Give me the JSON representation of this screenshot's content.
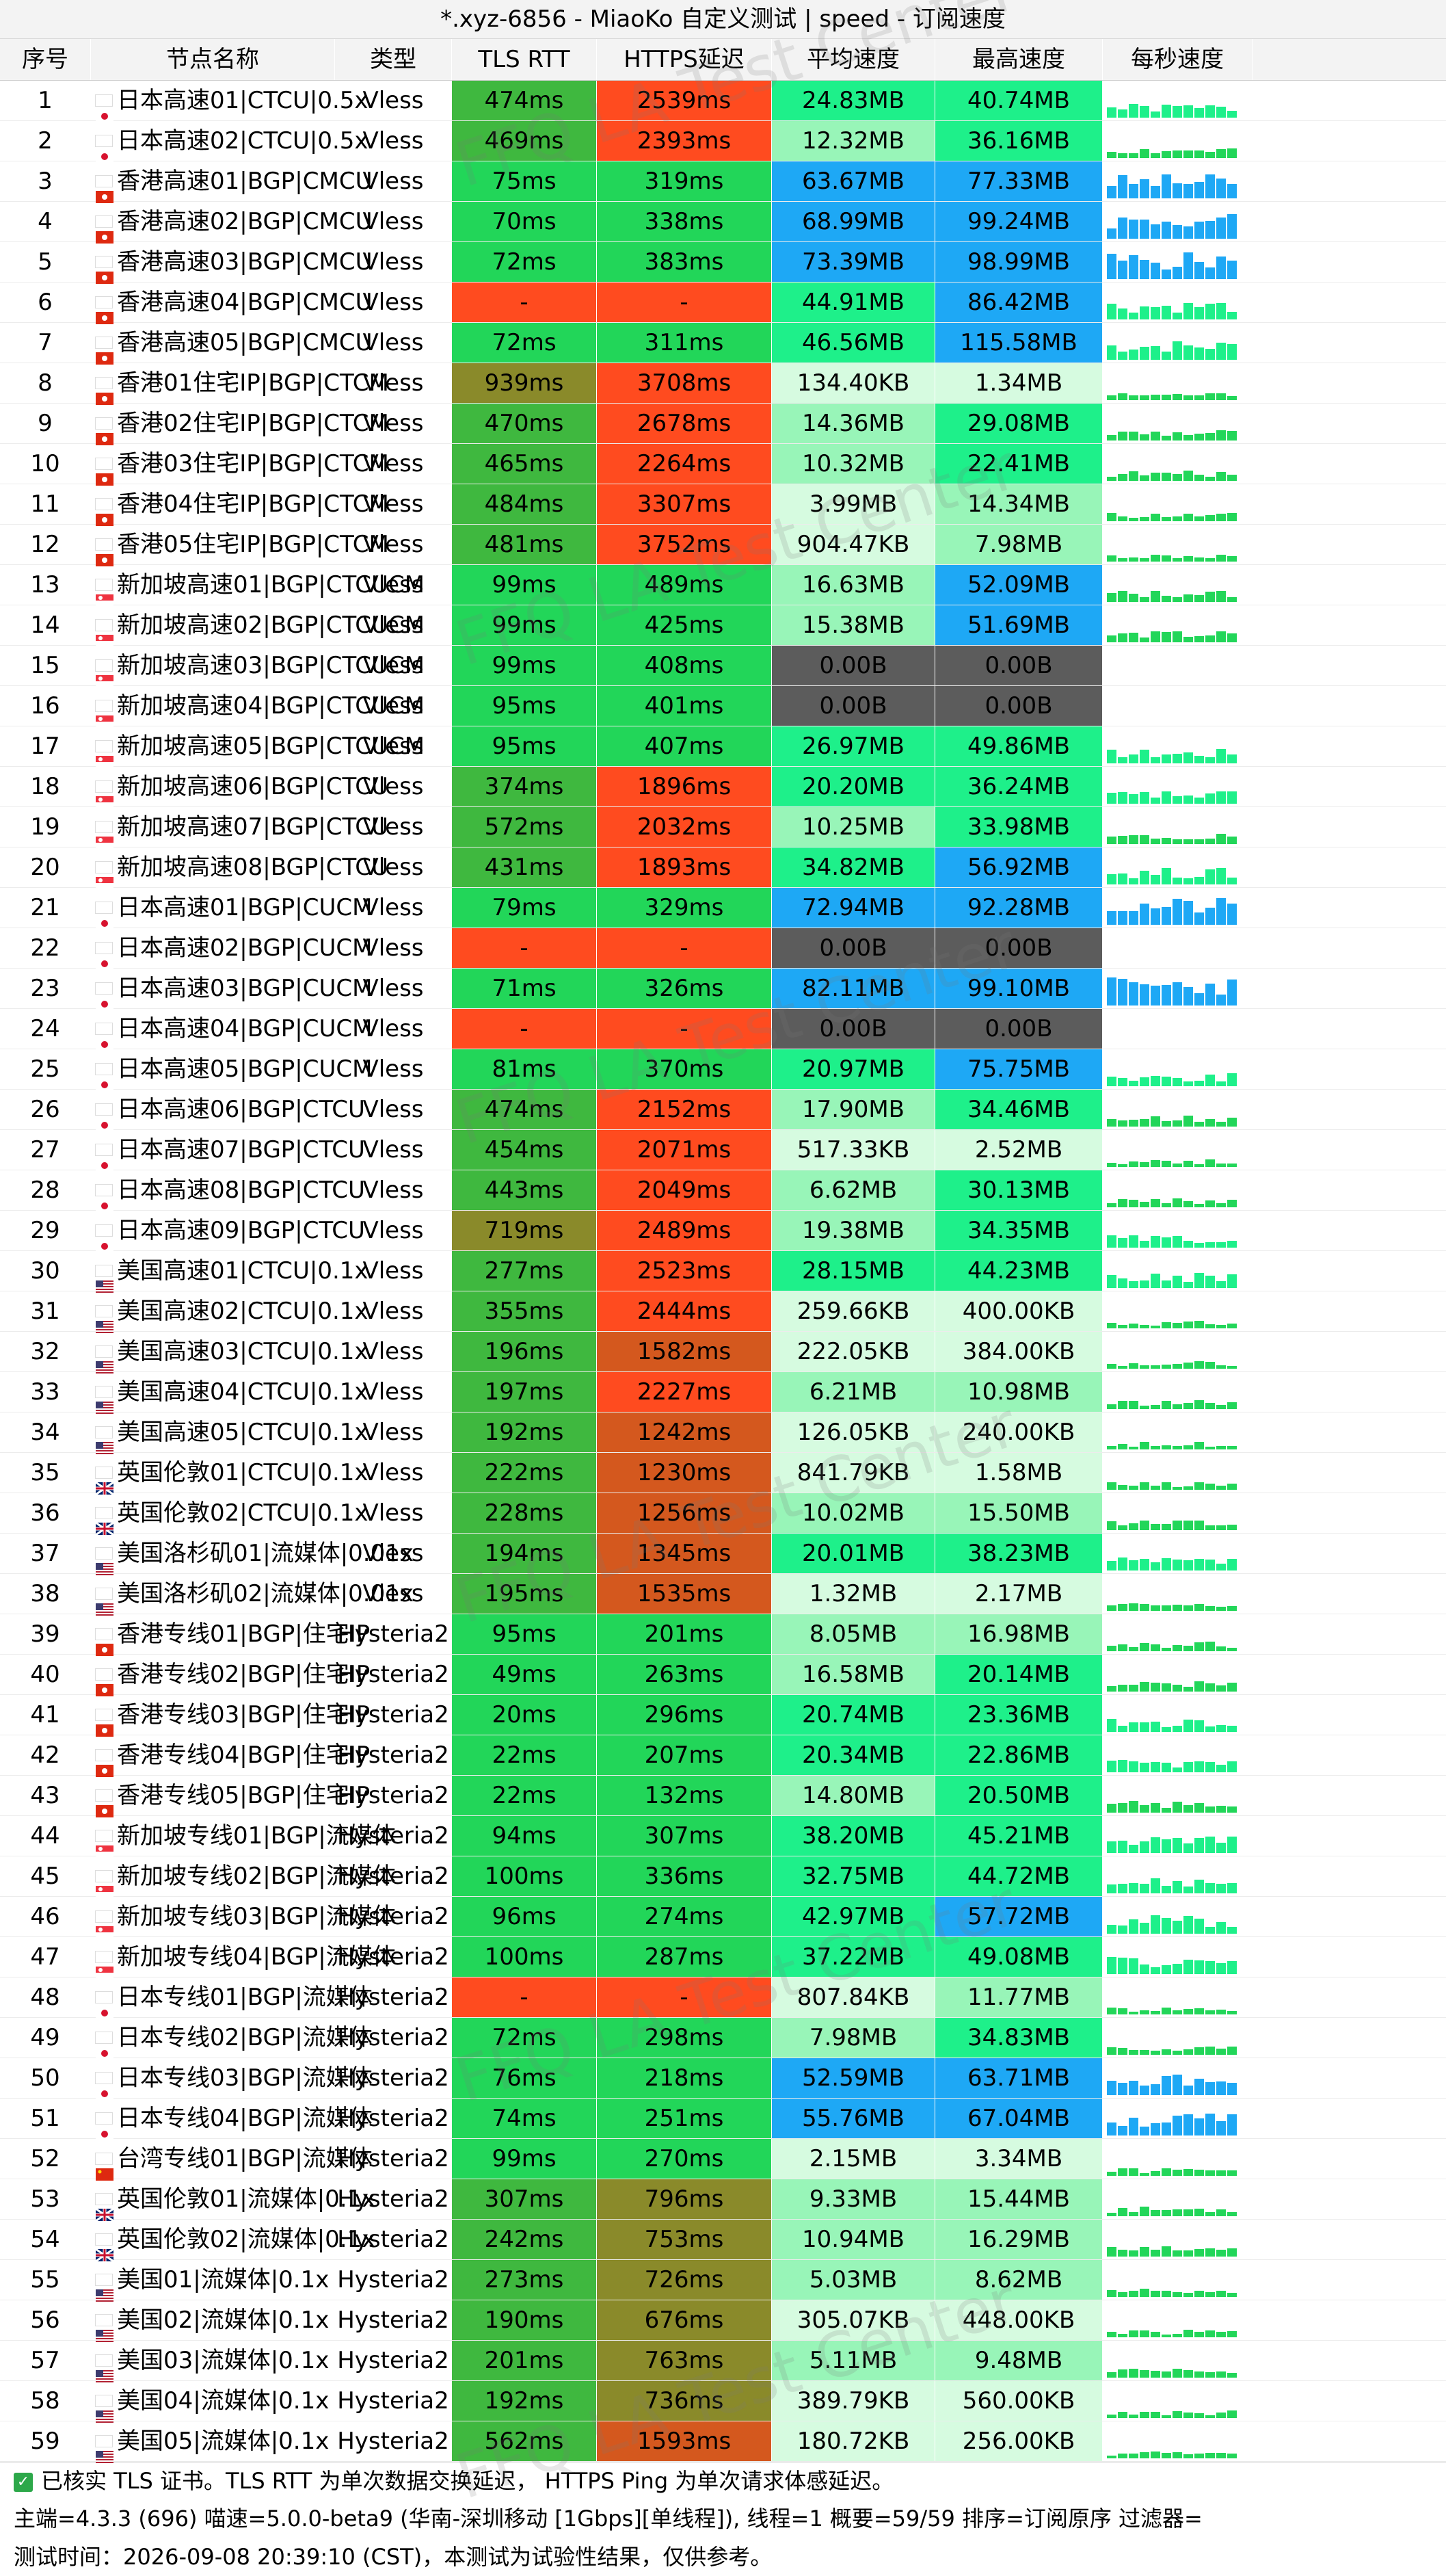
{
  "title": "*.xyz-6856 - MiaoKo 自定义测试 | speed - 订阅速度",
  "watermark": "FFQ LA Test Center",
  "headers": [
    "序号",
    "节点名称",
    "类型",
    "TLS RTT",
    "HTTPS延迟",
    "平均速度",
    "最高速度",
    "每秒速度"
  ],
  "rows": [
    {
      "no": "1",
      "flag": "jp",
      "name": "日本高速01|CTCU|0.5x",
      "type": "Vless",
      "tls": "474ms",
      "https": "2539ms",
      "avg": "24.83MB",
      "max": "40.74MB"
    },
    {
      "no": "2",
      "flag": "jp",
      "name": "日本高速02|CTCU|0.5x",
      "type": "Vless",
      "tls": "469ms",
      "https": "2393ms",
      "avg": "12.32MB",
      "max": "36.16MB"
    },
    {
      "no": "3",
      "flag": "hk",
      "name": "香港高速01|BGP|CMCU",
      "type": "Vless",
      "tls": "75ms",
      "https": "319ms",
      "avg": "63.67MB",
      "max": "77.33MB"
    },
    {
      "no": "4",
      "flag": "hk",
      "name": "香港高速02|BGP|CMCU",
      "type": "Vless",
      "tls": "70ms",
      "https": "338ms",
      "avg": "68.99MB",
      "max": "99.24MB"
    },
    {
      "no": "5",
      "flag": "hk",
      "name": "香港高速03|BGP|CMCU",
      "type": "Vless",
      "tls": "72ms",
      "https": "383ms",
      "avg": "73.39MB",
      "max": "98.99MB"
    },
    {
      "no": "6",
      "flag": "hk",
      "name": "香港高速04|BGP|CMCU",
      "type": "Vless",
      "tls": "-",
      "https": "-",
      "avg": "44.91MB",
      "max": "86.42MB"
    },
    {
      "no": "7",
      "flag": "hk",
      "name": "香港高速05|BGP|CMCU",
      "type": "Vless",
      "tls": "72ms",
      "https": "311ms",
      "avg": "46.56MB",
      "max": "115.58MB"
    },
    {
      "no": "8",
      "flag": "hk",
      "name": "香港01住宅IP|BGP|CTCM",
      "type": "Vless",
      "tls": "939ms",
      "https": "3708ms",
      "avg": "134.40KB",
      "max": "1.34MB"
    },
    {
      "no": "9",
      "flag": "hk",
      "name": "香港02住宅IP|BGP|CTCM",
      "type": "Vless",
      "tls": "470ms",
      "https": "2678ms",
      "avg": "14.36MB",
      "max": "29.08MB"
    },
    {
      "no": "10",
      "flag": "hk",
      "name": "香港03住宅IP|BGP|CTCM",
      "type": "Vless",
      "tls": "465ms",
      "https": "2264ms",
      "avg": "10.32MB",
      "max": "22.41MB"
    },
    {
      "no": "11",
      "flag": "hk",
      "name": "香港04住宅IP|BGP|CTCM",
      "type": "Vless",
      "tls": "484ms",
      "https": "3307ms",
      "avg": "3.99MB",
      "max": "14.34MB"
    },
    {
      "no": "12",
      "flag": "hk",
      "name": "香港05住宅IP|BGP|CTCM",
      "type": "Vless",
      "tls": "481ms",
      "https": "3752ms",
      "avg": "904.47KB",
      "max": "7.98MB"
    },
    {
      "no": "13",
      "flag": "sg",
      "name": "新加坡高速01|BGP|CTCUCM",
      "type": "Vless",
      "tls": "99ms",
      "https": "489ms",
      "avg": "16.63MB",
      "max": "52.09MB"
    },
    {
      "no": "14",
      "flag": "sg",
      "name": "新加坡高速02|BGP|CTCUCM",
      "type": "Vless",
      "tls": "99ms",
      "https": "425ms",
      "avg": "15.38MB",
      "max": "51.69MB"
    },
    {
      "no": "15",
      "flag": "sg",
      "name": "新加坡高速03|BGP|CTCUCM",
      "type": "Vless",
      "tls": "99ms",
      "https": "408ms",
      "avg": "0.00B",
      "max": "0.00B"
    },
    {
      "no": "16",
      "flag": "sg",
      "name": "新加坡高速04|BGP|CTCUCM",
      "type": "Vless",
      "tls": "95ms",
      "https": "401ms",
      "avg": "0.00B",
      "max": "0.00B"
    },
    {
      "no": "17",
      "flag": "sg",
      "name": "新加坡高速05|BGP|CTCUCM",
      "type": "Vless",
      "tls": "95ms",
      "https": "407ms",
      "avg": "26.97MB",
      "max": "49.86MB"
    },
    {
      "no": "18",
      "flag": "sg",
      "name": "新加坡高速06|BGP|CTCU",
      "type": "Vless",
      "tls": "374ms",
      "https": "1896ms",
      "avg": "20.20MB",
      "max": "36.24MB"
    },
    {
      "no": "19",
      "flag": "sg",
      "name": "新加坡高速07|BGP|CTCU",
      "type": "Vless",
      "tls": "572ms",
      "https": "2032ms",
      "avg": "10.25MB",
      "max": "33.98MB"
    },
    {
      "no": "20",
      "flag": "sg",
      "name": "新加坡高速08|BGP|CTCU",
      "type": "Vless",
      "tls": "431ms",
      "https": "1893ms",
      "avg": "34.82MB",
      "max": "56.92MB"
    },
    {
      "no": "21",
      "flag": "jp",
      "name": "日本高速01|BGP|CUCM",
      "type": "Vless",
      "tls": "79ms",
      "https": "329ms",
      "avg": "72.94MB",
      "max": "92.28MB"
    },
    {
      "no": "22",
      "flag": "jp",
      "name": "日本高速02|BGP|CUCM",
      "type": "Vless",
      "tls": "-",
      "https": "-",
      "avg": "0.00B",
      "max": "0.00B"
    },
    {
      "no": "23",
      "flag": "jp",
      "name": "日本高速03|BGP|CUCM",
      "type": "Vless",
      "tls": "71ms",
      "https": "326ms",
      "avg": "82.11MB",
      "max": "99.10MB"
    },
    {
      "no": "24",
      "flag": "jp",
      "name": "日本高速04|BGP|CUCM",
      "type": "Vless",
      "tls": "-",
      "https": "-",
      "avg": "0.00B",
      "max": "0.00B"
    },
    {
      "no": "25",
      "flag": "jp",
      "name": "日本高速05|BGP|CUCM",
      "type": "Vless",
      "tls": "81ms",
      "https": "370ms",
      "avg": "20.97MB",
      "max": "75.75MB"
    },
    {
      "no": "26",
      "flag": "jp",
      "name": "日本高速06|BGP|CTCU",
      "type": "Vless",
      "tls": "474ms",
      "https": "2152ms",
      "avg": "17.90MB",
      "max": "34.46MB"
    },
    {
      "no": "27",
      "flag": "jp",
      "name": "日本高速07|BGP|CTCU",
      "type": "Vless",
      "tls": "454ms",
      "https": "2071ms",
      "avg": "517.33KB",
      "max": "2.52MB"
    },
    {
      "no": "28",
      "flag": "jp",
      "name": "日本高速08|BGP|CTCU",
      "type": "Vless",
      "tls": "443ms",
      "https": "2049ms",
      "avg": "6.62MB",
      "max": "30.13MB"
    },
    {
      "no": "29",
      "flag": "jp",
      "name": "日本高速09|BGP|CTCU",
      "type": "Vless",
      "tls": "719ms",
      "https": "2489ms",
      "avg": "19.38MB",
      "max": "34.35MB"
    },
    {
      "no": "30",
      "flag": "us",
      "name": "美国高速01|CTCU|0.1x",
      "type": "Vless",
      "tls": "277ms",
      "https": "2523ms",
      "avg": "28.15MB",
      "max": "44.23MB"
    },
    {
      "no": "31",
      "flag": "us",
      "name": "美国高速02|CTCU|0.1x",
      "type": "Vless",
      "tls": "355ms",
      "https": "2444ms",
      "avg": "259.66KB",
      "max": "400.00KB"
    },
    {
      "no": "32",
      "flag": "us",
      "name": "美国高速03|CTCU|0.1x",
      "type": "Vless",
      "tls": "196ms",
      "https": "1582ms",
      "avg": "222.05KB",
      "max": "384.00KB"
    },
    {
      "no": "33",
      "flag": "us",
      "name": "美国高速04|CTCU|0.1x",
      "type": "Vless",
      "tls": "197ms",
      "https": "2227ms",
      "avg": "6.21MB",
      "max": "10.98MB"
    },
    {
      "no": "34",
      "flag": "us",
      "name": "美国高速05|CTCU|0.1x",
      "type": "Vless",
      "tls": "192ms",
      "https": "1242ms",
      "avg": "126.05KB",
      "max": "240.00KB"
    },
    {
      "no": "35",
      "flag": "gb",
      "name": "英国伦敦01|CTCU|0.1x",
      "type": "Vless",
      "tls": "222ms",
      "https": "1230ms",
      "avg": "841.79KB",
      "max": "1.58MB"
    },
    {
      "no": "36",
      "flag": "gb",
      "name": "英国伦敦02|CTCU|0.1x",
      "type": "Vless",
      "tls": "228ms",
      "https": "1256ms",
      "avg": "10.02MB",
      "max": "15.50MB"
    },
    {
      "no": "37",
      "flag": "us",
      "name": "美国洛杉矶01|流媒体|0.01x",
      "type": "Vless",
      "tls": "194ms",
      "https": "1345ms",
      "avg": "20.01MB",
      "max": "38.23MB"
    },
    {
      "no": "38",
      "flag": "us",
      "name": "美国洛杉矶02|流媒体|0.01x",
      "type": "Vless",
      "tls": "195ms",
      "https": "1535ms",
      "avg": "1.32MB",
      "max": "2.17MB"
    },
    {
      "no": "39",
      "flag": "hk",
      "name": "香港专线01|BGP|住宅IP",
      "type": "Hysteria2",
      "tls": "95ms",
      "https": "201ms",
      "avg": "8.05MB",
      "max": "16.98MB"
    },
    {
      "no": "40",
      "flag": "hk",
      "name": "香港专线02|BGP|住宅IP",
      "type": "Hysteria2",
      "tls": "49ms",
      "https": "263ms",
      "avg": "16.58MB",
      "max": "20.14MB"
    },
    {
      "no": "41",
      "flag": "hk",
      "name": "香港专线03|BGP|住宅IP",
      "type": "Hysteria2",
      "tls": "20ms",
      "https": "296ms",
      "avg": "20.74MB",
      "max": "23.36MB"
    },
    {
      "no": "42",
      "flag": "hk",
      "name": "香港专线04|BGP|住宅IP",
      "type": "Hysteria2",
      "tls": "22ms",
      "https": "207ms",
      "avg": "20.34MB",
      "max": "22.86MB"
    },
    {
      "no": "43",
      "flag": "hk",
      "name": "香港专线05|BGP|住宅IP",
      "type": "Hysteria2",
      "tls": "22ms",
      "https": "132ms",
      "avg": "14.80MB",
      "max": "20.50MB"
    },
    {
      "no": "44",
      "flag": "sg",
      "name": "新加坡专线01|BGP|流媒体",
      "type": "Hysteria2",
      "tls": "94ms",
      "https": "307ms",
      "avg": "38.20MB",
      "max": "45.21MB"
    },
    {
      "no": "45",
      "flag": "sg",
      "name": "新加坡专线02|BGP|流媒体",
      "type": "Hysteria2",
      "tls": "100ms",
      "https": "336ms",
      "avg": "32.75MB",
      "max": "44.72MB"
    },
    {
      "no": "46",
      "flag": "sg",
      "name": "新加坡专线03|BGP|流媒体",
      "type": "Hysteria2",
      "tls": "96ms",
      "https": "274ms",
      "avg": "42.97MB",
      "max": "57.72MB"
    },
    {
      "no": "47",
      "flag": "sg",
      "name": "新加坡专线04|BGP|流媒体",
      "type": "Hysteria2",
      "tls": "100ms",
      "https": "287ms",
      "avg": "37.22MB",
      "max": "49.08MB"
    },
    {
      "no": "48",
      "flag": "jp",
      "name": "日本专线01|BGP|流媒体",
      "type": "Hysteria2",
      "tls": "-",
      "https": "-",
      "avg": "807.84KB",
      "max": "11.77MB"
    },
    {
      "no": "49",
      "flag": "jp",
      "name": "日本专线02|BGP|流媒体",
      "type": "Hysteria2",
      "tls": "72ms",
      "https": "298ms",
      "avg": "7.98MB",
      "max": "34.83MB"
    },
    {
      "no": "50",
      "flag": "jp",
      "name": "日本专线03|BGP|流媒体",
      "type": "Hysteria2",
      "tls": "76ms",
      "https": "218ms",
      "avg": "52.59MB",
      "max": "63.71MB"
    },
    {
      "no": "51",
      "flag": "jp",
      "name": "日本专线04|BGP|流媒体",
      "type": "Hysteria2",
      "tls": "74ms",
      "https": "251ms",
      "avg": "55.76MB",
      "max": "67.04MB"
    },
    {
      "no": "52",
      "flag": "cn",
      "name": "台湾专线01|BGP|流媒体",
      "type": "Hysteria2",
      "tls": "99ms",
      "https": "270ms",
      "avg": "2.15MB",
      "max": "3.34MB"
    },
    {
      "no": "53",
      "flag": "gb",
      "name": "英国伦敦01|流媒体|0.1x",
      "type": "Hysteria2",
      "tls": "307ms",
      "https": "796ms",
      "avg": "9.33MB",
      "max": "15.44MB"
    },
    {
      "no": "54",
      "flag": "gb",
      "name": "英国伦敦02|流媒体|0.1x",
      "type": "Hysteria2",
      "tls": "242ms",
      "https": "753ms",
      "avg": "10.94MB",
      "max": "16.29MB"
    },
    {
      "no": "55",
      "flag": "us",
      "name": "美国01|流媒体|0.1x",
      "type": "Hysteria2",
      "tls": "273ms",
      "https": "726ms",
      "avg": "5.03MB",
      "max": "8.62MB"
    },
    {
      "no": "56",
      "flag": "us",
      "name": "美国02|流媒体|0.1x",
      "type": "Hysteria2",
      "tls": "190ms",
      "https": "676ms",
      "avg": "305.07KB",
      "max": "448.00KB"
    },
    {
      "no": "57",
      "flag": "us",
      "name": "美国03|流媒体|0.1x",
      "type": "Hysteria2",
      "tls": "201ms",
      "https": "763ms",
      "avg": "5.11MB",
      "max": "9.48MB"
    },
    {
      "no": "58",
      "flag": "us",
      "name": "美国04|流媒体|0.1x",
      "type": "Hysteria2",
      "tls": "192ms",
      "https": "736ms",
      "avg": "389.79KB",
      "max": "560.00KB"
    },
    {
      "no": "59",
      "flag": "us",
      "name": "美国05|流媒体|0.1x",
      "type": "Hysteria2",
      "tls": "562ms",
      "https": "1593ms",
      "avg": "180.72KB",
      "max": "256.00KB"
    }
  ],
  "footer": {
    "line1": "已核实 TLS 证书。TLS RTT 为单次数据交换延迟， HTTPS Ping 为单次请求体感延迟。",
    "line2": "主端=4.3.3 (696) 喵速=5.0.0-beta9 (华南-深圳移动 [1Gbps][单线程]), 线程=1 概要=59/59 排序=订阅原序 过滤器=",
    "line3": "测试时间：2026-09-08 20:39:10 (CST)，本测试为试验性结果，仅供参考。"
  },
  "colors": {
    "latency_fail": "#ff4b1f",
    "latency_good": "#22d659",
    "latency_mid": "#3fb83f",
    "latency_high": "#8a8a2a",
    "https_bad": "#ff4b1f",
    "https_warn": "#d4581e",
    "speed_none": "#5c5c5c",
    "speed_fast": "#1ea8f5",
    "speed_good": "#1ef08a",
    "speed_mid": "#98f5b8",
    "speed_low": "#d6fbe0"
  }
}
